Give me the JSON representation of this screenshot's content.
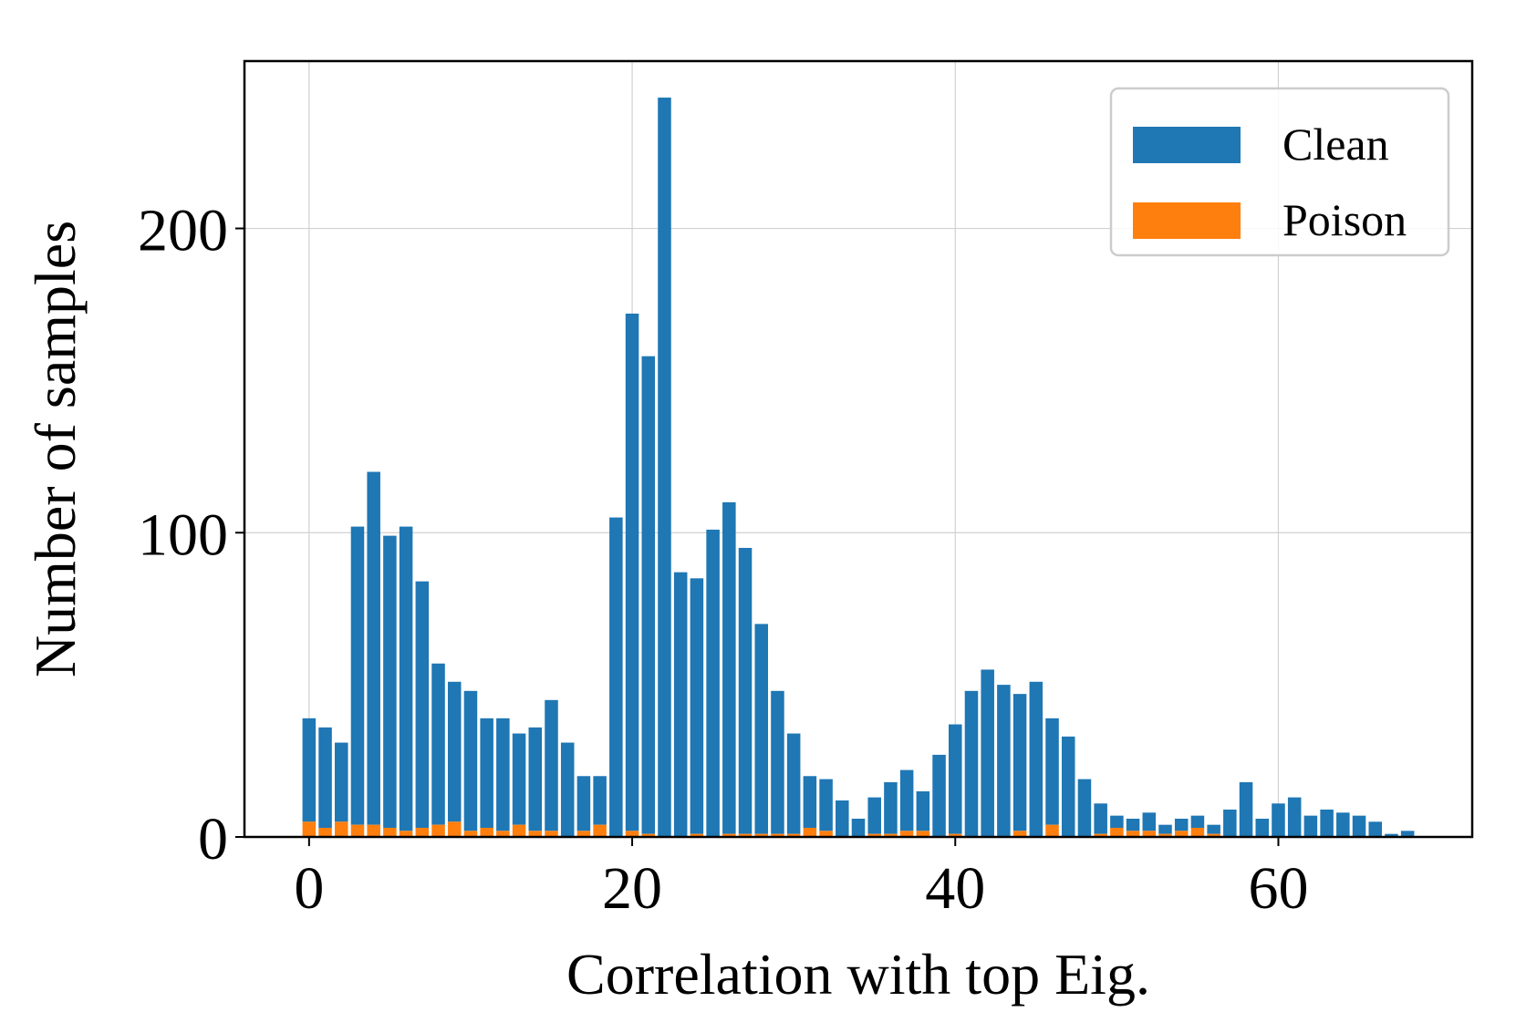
{
  "chart_data": {
    "type": "bar",
    "stacked": true,
    "title": "",
    "xlabel": "Correlation with top Eig.",
    "ylabel": "Number of samples",
    "xlim": [
      -4,
      72
    ],
    "ylim": [
      0,
      255
    ],
    "xticks": [
      0,
      20,
      40,
      60
    ],
    "yticks": [
      0,
      100,
      200
    ],
    "grid": true,
    "legend_position": "top-right",
    "x": [
      0,
      1,
      2,
      3,
      4,
      5,
      6,
      7,
      8,
      9,
      10,
      11,
      12,
      13,
      14,
      15,
      16,
      17,
      18,
      19,
      20,
      21,
      22,
      23,
      24,
      25,
      26,
      27,
      28,
      29,
      30,
      31,
      32,
      33,
      34,
      35,
      36,
      37,
      38,
      39,
      40,
      41,
      42,
      43,
      44,
      45,
      46,
      47,
      48,
      49,
      50,
      51,
      52,
      53,
      54,
      55,
      56,
      57,
      58,
      59,
      60,
      61,
      62,
      63,
      64,
      65,
      66,
      67,
      68
    ],
    "series": [
      {
        "name": "Clean",
        "color": "#1f77b4",
        "values": [
          34,
          33,
          26,
          98,
          116,
          96,
          100,
          81,
          53,
          46,
          46,
          36,
          37,
          30,
          34,
          43,
          31,
          18,
          16,
          105,
          170,
          157,
          243,
          87,
          84,
          101,
          109,
          94,
          69,
          47,
          33,
          17,
          17,
          12,
          6,
          12,
          17,
          20,
          13,
          27,
          36,
          48,
          55,
          50,
          45,
          51,
          35,
          33,
          19,
          10,
          4,
          4,
          6,
          3,
          4,
          4,
          3,
          9,
          18,
          6,
          11,
          13,
          7,
          9,
          8,
          7,
          5,
          1,
          2
        ]
      },
      {
        "name": "Poison",
        "color": "#ff7f0e",
        "values": [
          5,
          3,
          5,
          4,
          4,
          3,
          2,
          3,
          4,
          5,
          2,
          3,
          2,
          4,
          2,
          2,
          0,
          2,
          4,
          0,
          2,
          1,
          0,
          0,
          1,
          0,
          1,
          1,
          1,
          1,
          1,
          3,
          2,
          0,
          0,
          1,
          1,
          2,
          2,
          0,
          1,
          0,
          0,
          0,
          2,
          0,
          4,
          0,
          0,
          1,
          3,
          2,
          2,
          1,
          2,
          3,
          1,
          0,
          0,
          0,
          0,
          0,
          0,
          0,
          0,
          0,
          0,
          0,
          0
        ]
      }
    ]
  }
}
